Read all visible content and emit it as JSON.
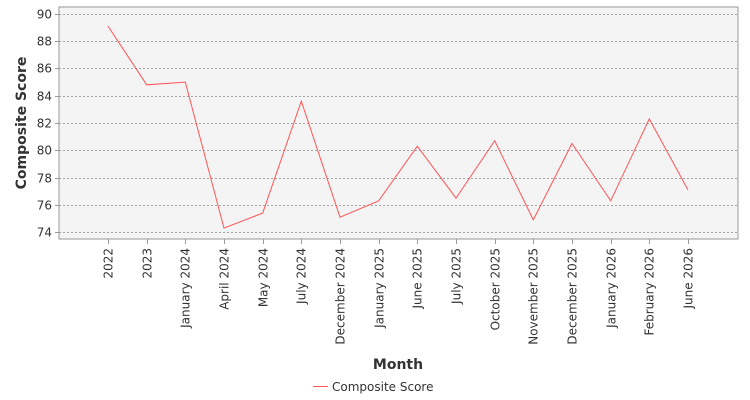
{
  "chart_data": {
    "type": "line",
    "xlabel": "Month",
    "ylabel": "Composite Score",
    "ylim": [
      73.5,
      90.5
    ],
    "yticks": [
      74,
      76,
      78,
      80,
      82,
      84,
      86,
      88,
      90
    ],
    "grid": true,
    "legend_position": "bottom",
    "categories": [
      "2022",
      "2023",
      "January 2024",
      "April 2024",
      "May 2024",
      "July 2024",
      "December 2024",
      "January 2025",
      "June 2025",
      "July 2025",
      "October 2025",
      "November 2025",
      "December 2025",
      "January 2026",
      "February 2026",
      "June 2026"
    ],
    "series": [
      {
        "name": "Composite Score",
        "color": "#ff5555",
        "values": [
          89.1,
          84.8,
          85.0,
          74.3,
          75.4,
          83.6,
          75.1,
          76.3,
          80.3,
          76.5,
          80.7,
          74.9,
          80.5,
          76.3,
          82.3,
          77.1
        ]
      }
    ]
  },
  "colors": {
    "plot_background": "#f4f4f4",
    "gridline": "#8a8a8a",
    "axis": "#999999"
  }
}
